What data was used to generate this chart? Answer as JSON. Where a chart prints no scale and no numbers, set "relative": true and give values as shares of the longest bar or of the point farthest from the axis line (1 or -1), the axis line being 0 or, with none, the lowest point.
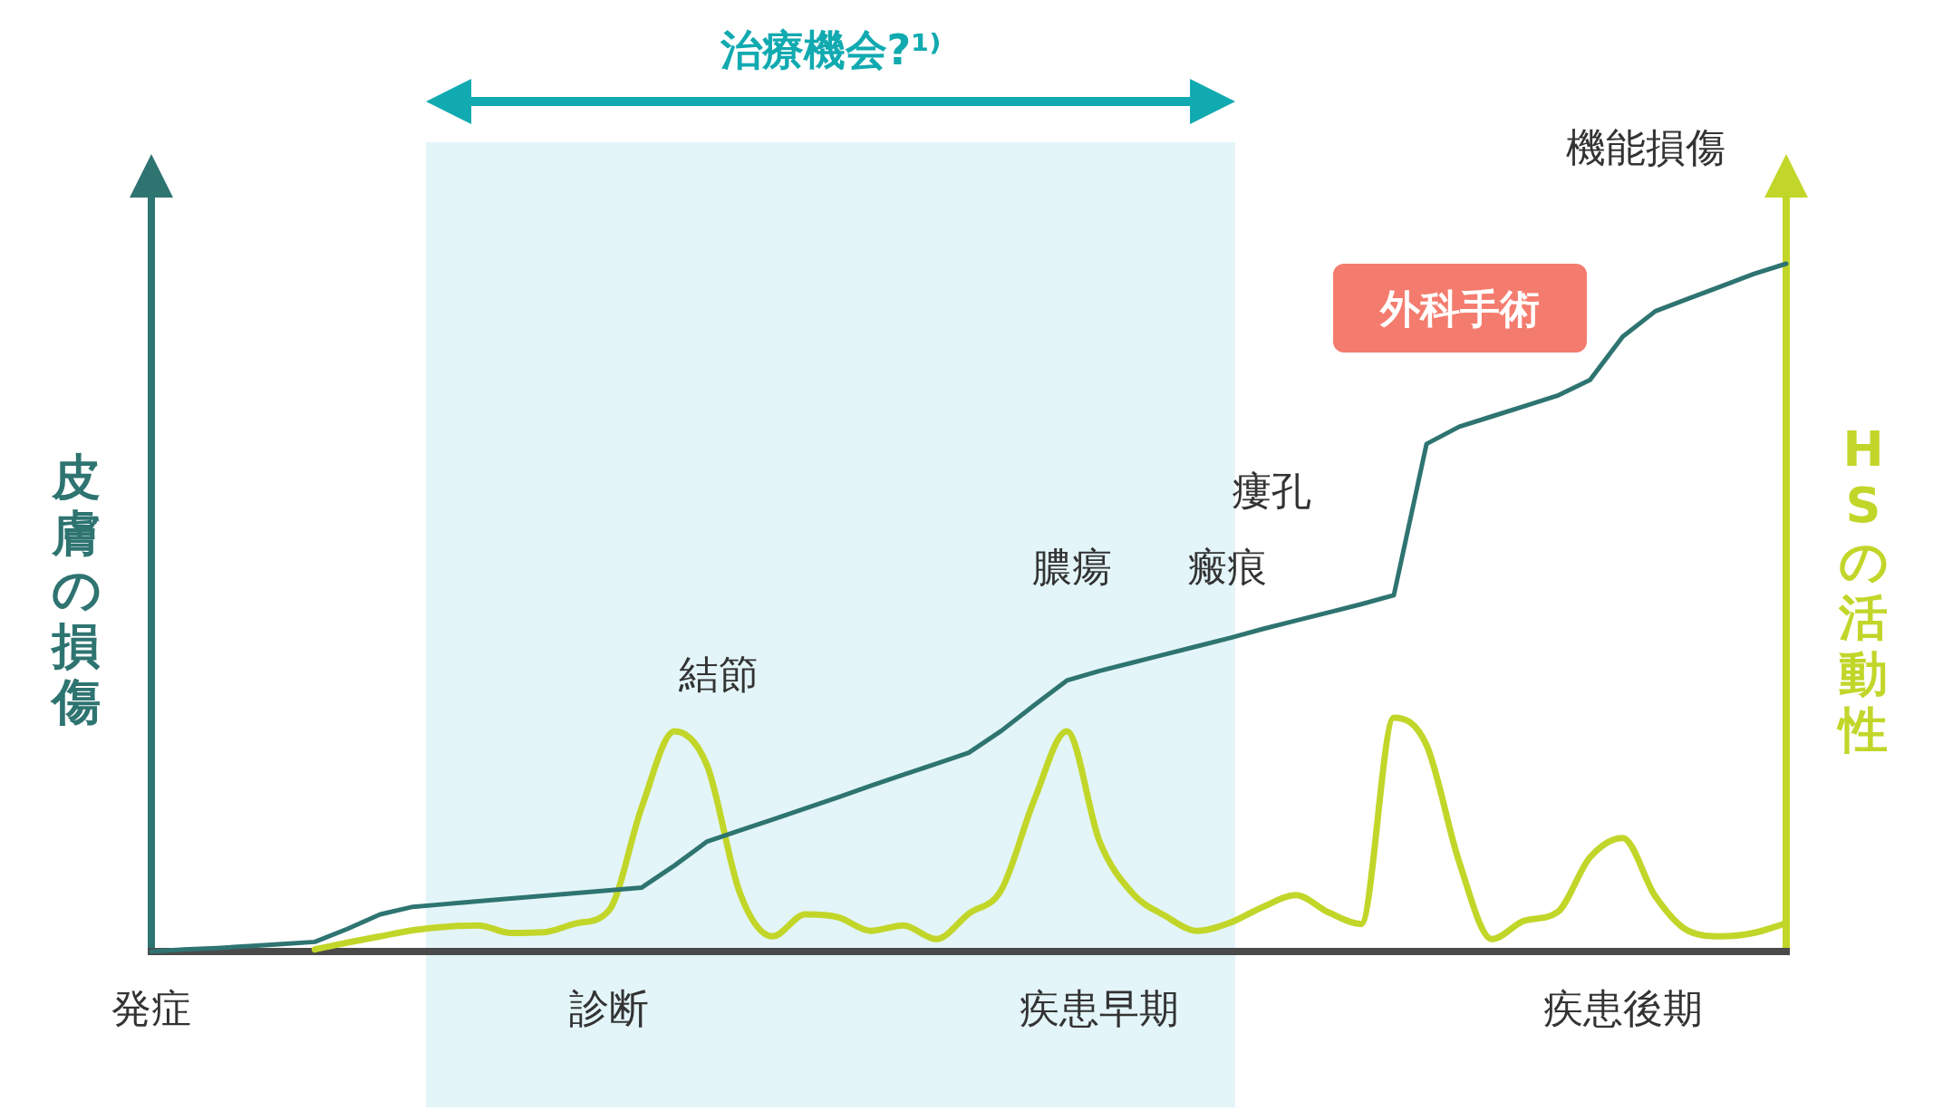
{
  "chart_data": {
    "type": "line",
    "relative": true,
    "ylabel": "皮膚の損傷",
    "y2label": "HSの活動性",
    "categories": [
      "発症",
      null,
      null,
      null,
      null,
      null,
      null,
      null,
      null,
      null,
      null,
      null,
      null,
      null,
      "診断",
      null,
      null,
      null,
      null,
      null,
      null,
      null,
      null,
      null,
      null,
      null,
      null,
      null,
      null,
      "疾患早期",
      null,
      null,
      null,
      null,
      null,
      null,
      null,
      null,
      null,
      null,
      null,
      null,
      null,
      null,
      null,
      "疾患後期",
      null,
      null,
      null,
      null,
      null
    ],
    "series": [
      {
        "color": "#2e7471",
        "values": [
          0,
          0.003,
          0.005,
          0.008,
          0.011,
          0.014,
          0.033,
          0.054,
          0.065,
          0.069,
          0.073,
          0.077,
          0.081,
          0.085,
          0.089,
          0.093,
          0.125,
          0.16,
          0.176,
          0.192,
          0.208,
          0.224,
          0.241,
          0.257,
          0.273,
          0.289,
          0.321,
          0.358,
          0.394,
          0.408,
          0.42,
          0.432,
          0.444,
          0.456,
          0.469,
          0.481,
          0.493,
          0.505,
          0.518,
          0.738,
          0.763,
          0.778,
          0.793,
          0.808,
          0.831,
          0.894,
          0.931,
          0.949,
          0.967,
          0.985,
          1.0
        ]
      },
      {
        "color": "#c2d62a",
        "values": [
          null,
          null,
          null,
          null,
          null,
          0.003,
          0.013,
          0.022,
          0.031,
          0.036,
          0.038,
          0.027,
          0.028,
          0.041,
          0.06,
          0.21,
          0.32,
          0.27,
          0.085,
          0.022,
          0.054,
          0.05,
          0.03,
          0.038,
          0.018,
          0.055,
          0.09,
          0.22,
          0.32,
          0.16,
          0.085,
          0.052,
          0.03,
          0.042,
          0.065,
          0.082,
          0.057,
          0.04,
          0.34,
          0.3,
          0.13,
          0.018,
          0.045,
          0.057,
          0.137,
          0.165,
          0.08,
          0.03,
          0.022,
          0.027,
          0.041
        ]
      }
    ],
    "title": "治療機会?¹⁾",
    "annotations": [
      "結節",
      "膿瘍",
      "瘢痕",
      "瘻孔",
      "機能損傷",
      "外科手術"
    ]
  }
}
